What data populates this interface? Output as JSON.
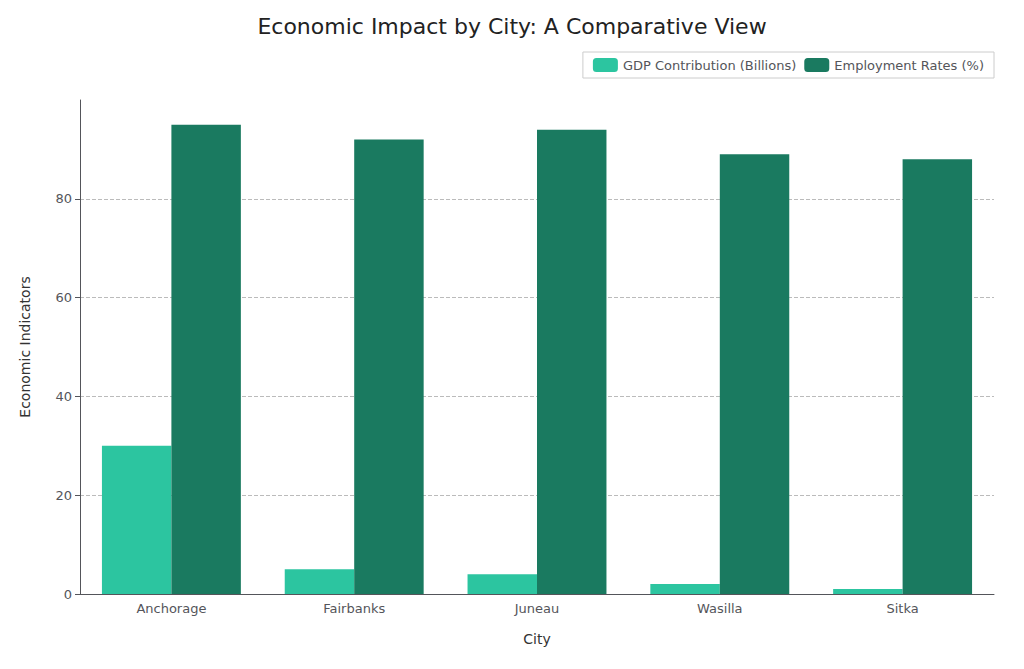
{
  "chart_data": {
    "type": "bar",
    "title": "Economic Impact by City: A Comparative View",
    "xlabel": "City",
    "ylabel": "Economic Indicators",
    "categories": [
      "Anchorage",
      "Fairbanks",
      "Juneau",
      "Wasilla",
      "Sitka"
    ],
    "series": [
      {
        "name": "GDP Contribution (Billions)",
        "color": "#2CC5A0",
        "values": [
          30,
          5,
          4,
          2,
          1
        ]
      },
      {
        "name": "Employment Rates (%)",
        "color": "#1A7A60",
        "values": [
          95,
          92,
          94,
          89,
          88
        ]
      }
    ],
    "ylim": [
      0,
      100
    ],
    "yticks": [
      0,
      20,
      40,
      60,
      80
    ],
    "grid": true,
    "legend": "upper right"
  }
}
